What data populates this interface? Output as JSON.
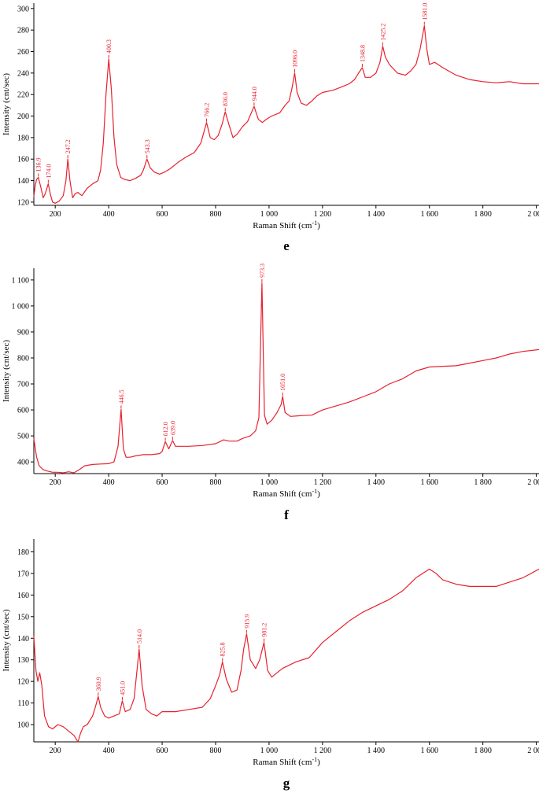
{
  "chart_data": [
    {
      "type": "line",
      "panel_label": "e",
      "xlabel": "Raman Shift (cm",
      "xlabel_sup": "-1",
      "xlabel_tail": ")",
      "ylabel": "Intensity (cnt/sec)",
      "xlim": [
        120,
        2010
      ],
      "ylim": [
        117,
        305
      ],
      "color": "#e8212e",
      "grid": false,
      "x_ticks": [
        200,
        400,
        600,
        800,
        1000,
        1200,
        1400,
        1600,
        1800,
        2000
      ],
      "x_tick_labels": [
        "200",
        "400",
        "600",
        "800",
        "1 000",
        "1 200",
        "1 400",
        "1 600",
        "1 800",
        "2 000"
      ],
      "y_ticks": [
        120,
        140,
        160,
        180,
        200,
        220,
        240,
        260,
        280,
        300
      ],
      "y_tick_labels": [
        "120",
        "140",
        "160",
        "180",
        "200",
        "220",
        "240",
        "260",
        "280",
        "300"
      ],
      "series": [
        {
          "x": [
            120,
            125,
            130,
            136.9,
            145,
            155,
            163,
            174,
            182,
            190,
            200,
            215,
            230,
            240,
            247.2,
            255,
            265,
            275,
            285,
            300,
            320,
            340,
            360,
            370,
            380,
            390,
            400.3,
            410,
            420,
            430,
            445,
            460,
            480,
            500,
            520,
            530,
            543.3,
            555,
            570,
            590,
            610,
            630,
            660,
            690,
            720,
            745,
            766.2,
            780,
            795,
            810,
            825,
            836,
            850,
            865,
            880,
            900,
            920,
            944,
            960,
            975,
            990,
            1010,
            1040,
            1060,
            1075,
            1085,
            1096,
            1105,
            1120,
            1140,
            1160,
            1180,
            1200,
            1240,
            1280,
            1300,
            1320,
            1335,
            1348.8,
            1360,
            1380,
            1400,
            1415,
            1425.2,
            1435,
            1450,
            1480,
            1510,
            1530,
            1550,
            1565,
            1581,
            1590,
            1600,
            1620,
            1650,
            1700,
            1750,
            1800,
            1850,
            1900,
            1950,
            2010
          ],
          "y": [
            125,
            135,
            141,
            143,
            135,
            124,
            128,
            137,
            127,
            120,
            119,
            121,
            126,
            140,
            160,
            140,
            124,
            128,
            129,
            126,
            133,
            137,
            140,
            150,
            175,
            220,
            253,
            225,
            180,
            155,
            143,
            141,
            140,
            142,
            145,
            150,
            160,
            152,
            148,
            146,
            148,
            151,
            157,
            162,
            166,
            175,
            194,
            180,
            178,
            182,
            193,
            204,
            192,
            180,
            183,
            190,
            195,
            209,
            197,
            194,
            197,
            200,
            203,
            210,
            214,
            225,
            240,
            222,
            212,
            210,
            214,
            219,
            222,
            224,
            228,
            230,
            234,
            240,
            245,
            236,
            236,
            240,
            250,
            265,
            255,
            248,
            240,
            238,
            242,
            248,
            262,
            284,
            263,
            248,
            250,
            245,
            238,
            234,
            232,
            231,
            232,
            230,
            230
          ]
        }
      ],
      "annotations": [
        {
          "x": 136.9,
          "y": 143,
          "text": "136.9"
        },
        {
          "x": 174.0,
          "y": 137,
          "text": "174.0"
        },
        {
          "x": 247.2,
          "y": 160,
          "text": "247.2"
        },
        {
          "x": 400.3,
          "y": 253,
          "text": "400.3"
        },
        {
          "x": 543.3,
          "y": 160,
          "text": "543.3"
        },
        {
          "x": 766.2,
          "y": 194,
          "text": "766.2"
        },
        {
          "x": 836.0,
          "y": 204,
          "text": "836.0"
        },
        {
          "x": 944.0,
          "y": 209,
          "text": "944.0"
        },
        {
          "x": 1096.0,
          "y": 240,
          "text": "1096.0"
        },
        {
          "x": 1348.8,
          "y": 245,
          "text": "1348.8"
        },
        {
          "x": 1425.2,
          "y": 265,
          "text": "1425.2"
        },
        {
          "x": 1581.0,
          "y": 284,
          "text": "1581.0"
        }
      ]
    },
    {
      "type": "line",
      "panel_label": "f",
      "xlabel": "Raman Shift (cm",
      "xlabel_sup": "-1",
      "xlabel_tail": ")",
      "ylabel": "Intensity (cnt/sec)",
      "xlim": [
        120,
        2010
      ],
      "ylim": [
        355,
        1145
      ],
      "color": "#e8212e",
      "grid": false,
      "x_ticks": [
        200,
        400,
        600,
        800,
        1000,
        1200,
        1400,
        1600,
        1800,
        2000
      ],
      "x_tick_labels": [
        "200",
        "400",
        "600",
        "800",
        "1 000",
        "1 200",
        "1 400",
        "1 600",
        "1 800",
        "2 000"
      ],
      "y_ticks": [
        400,
        500,
        600,
        700,
        800,
        900,
        1000,
        1100
      ],
      "y_tick_labels": [
        "400",
        "500",
        "600",
        "700",
        "800",
        "900",
        "1 000",
        "1 100"
      ],
      "series": [
        {
          "x": [
            120,
            130,
            140,
            155,
            170,
            190,
            210,
            230,
            250,
            270,
            290,
            310,
            340,
            370,
            400,
            420,
            435,
            446.5,
            455,
            465,
            480,
            500,
            530,
            560,
            590,
            600,
            612,
            625,
            639,
            650,
            700,
            750,
            800,
            830,
            850,
            880,
            900,
            930,
            950,
            962,
            973.3,
            983,
            993,
            1010,
            1030,
            1045,
            1051,
            1060,
            1080,
            1120,
            1160,
            1200,
            1250,
            1300,
            1350,
            1400,
            1450,
            1500,
            1550,
            1600,
            1650,
            1700,
            1750,
            1800,
            1850,
            1900,
            1950,
            2010
          ],
          "y": [
            490,
            420,
            385,
            370,
            365,
            360,
            360,
            358,
            362,
            358,
            370,
            385,
            390,
            392,
            393,
            400,
            460,
            602,
            450,
            418,
            418,
            423,
            428,
            428,
            432,
            440,
            478,
            450,
            482,
            460,
            460,
            463,
            470,
            485,
            480,
            480,
            490,
            500,
            520,
            570,
            1088,
            580,
            545,
            560,
            590,
            620,
            652,
            590,
            575,
            578,
            580,
            600,
            615,
            630,
            650,
            670,
            700,
            720,
            750,
            765,
            768,
            770,
            780,
            790,
            800,
            815,
            825,
            832
          ]
        }
      ],
      "annotations": [
        {
          "x": 446.5,
          "y": 602,
          "text": "446.5"
        },
        {
          "x": 612.0,
          "y": 478,
          "text": "612.0"
        },
        {
          "x": 639.0,
          "y": 482,
          "text": "639.0"
        },
        {
          "x": 973.3,
          "y": 1088,
          "text": "973.3"
        },
        {
          "x": 1051.0,
          "y": 652,
          "text": "1051.0"
        }
      ]
    },
    {
      "type": "line",
      "panel_label": "g",
      "xlabel": "Raman Shift (cm",
      "xlabel_sup": "-1",
      "xlabel_tail": ")",
      "ylabel": "Intensity (cnt/sec)",
      "xlim": [
        120,
        2010
      ],
      "ylim": [
        92,
        186
      ],
      "color": "#e8212e",
      "grid": false,
      "x_ticks": [
        200,
        400,
        600,
        800,
        1000,
        1200,
        1400,
        1600,
        1800,
        2000
      ],
      "x_tick_labels": [
        "200",
        "400",
        "600",
        "800",
        "1 000",
        "1 200",
        "1 400",
        "1 600",
        "1 800",
        "2 000"
      ],
      "y_ticks": [
        100,
        110,
        120,
        130,
        140,
        150,
        160,
        170,
        180
      ],
      "y_tick_labels": [
        "100",
        "110",
        "120",
        "130",
        "140",
        "150",
        "160",
        "170",
        "180"
      ],
      "series": [
        {
          "x": [
            120,
            128,
            135,
            142,
            150,
            160,
            175,
            190,
            210,
            230,
            250,
            270,
            285,
            295,
            305,
            320,
            340,
            350,
            360.9,
            370,
            385,
            400,
            420,
            440,
            451,
            462,
            480,
            495,
            505,
            514,
            525,
            540,
            560,
            580,
            600,
            650,
            700,
            750,
            780,
            800,
            815,
            825.8,
            840,
            860,
            880,
            895,
            905,
            915.9,
            930,
            950,
            965,
            981.2,
            995,
            1010,
            1030,
            1050,
            1100,
            1150,
            1200,
            1250,
            1300,
            1350,
            1400,
            1450,
            1500,
            1550,
            1575,
            1600,
            1625,
            1650,
            1700,
            1750,
            1800,
            1850,
            1900,
            1950,
            2010
          ],
          "y": [
            141,
            125,
            120,
            124,
            118,
            104,
            99,
            98,
            100,
            99,
            97,
            95,
            92,
            96,
            99,
            100,
            104,
            108,
            113,
            108,
            104,
            103,
            104,
            105,
            111,
            106,
            107,
            112,
            124,
            135,
            118,
            107,
            105,
            104,
            106,
            106,
            107,
            108,
            112,
            118,
            123,
            129,
            121,
            115,
            116,
            125,
            135,
            142,
            130,
            126,
            130,
            138,
            125,
            122,
            124,
            126,
            129,
            131,
            138,
            143,
            148,
            152,
            155,
            158,
            162,
            168,
            170,
            172,
            170,
            167,
            165,
            164,
            164,
            164,
            166,
            168,
            172
          ]
        }
      ],
      "annotations": [
        {
          "x": 360.9,
          "y": 113,
          "text": "360.9"
        },
        {
          "x": 451.0,
          "y": 111,
          "text": "451.0"
        },
        {
          "x": 514.0,
          "y": 135,
          "text": "514.0"
        },
        {
          "x": 825.8,
          "y": 129,
          "text": "825.8"
        },
        {
          "x": 915.9,
          "y": 142,
          "text": "915.9"
        },
        {
          "x": 981.2,
          "y": 138,
          "text": "981.2"
        }
      ]
    }
  ]
}
